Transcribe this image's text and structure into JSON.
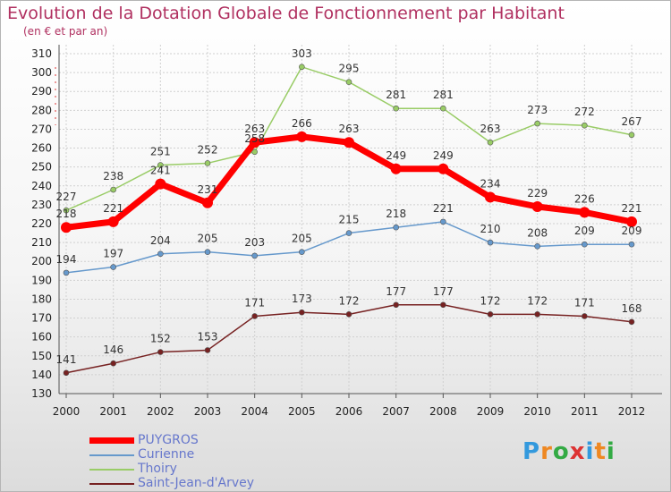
{
  "title": "Evolution de la Dotation Globale de Fonctionnement par Habitant",
  "subtitle": "(en € et par an)",
  "logo_text": "Proxiti",
  "chart_data": {
    "type": "line",
    "title": "Evolution de la Dotation Globale de Fonctionnement par Habitant",
    "subtitle": "(en € et par an)",
    "x": [
      "2000",
      "2001",
      "2002",
      "2003",
      "2004",
      "2005",
      "2006",
      "2007",
      "2008",
      "2009",
      "2010",
      "2011",
      "2012"
    ],
    "ylim": [
      130,
      310
    ],
    "yticks": [
      130,
      140,
      150,
      160,
      170,
      180,
      190,
      200,
      210,
      220,
      230,
      240,
      250,
      260,
      270,
      280,
      290,
      300,
      310
    ],
    "grid": true,
    "legend_position": "bottom-left",
    "series": [
      {
        "name": "PUYGROS",
        "color": "#ff0000",
        "width": 7,
        "values": [
          218,
          221,
          241,
          231,
          263,
          266,
          263,
          249,
          249,
          234,
          229,
          226,
          221
        ]
      },
      {
        "name": "Curienne",
        "color": "#6699cc",
        "width": 1.5,
        "values": [
          194,
          197,
          204,
          205,
          203,
          205,
          215,
          218,
          221,
          210,
          208,
          209,
          209
        ]
      },
      {
        "name": "Thoiry",
        "color": "#99cc66",
        "width": 1.5,
        "values": [
          227,
          238,
          251,
          252,
          258,
          303,
          295,
          281,
          281,
          263,
          273,
          272,
          267
        ]
      },
      {
        "name": "Saint-Jean-d'Arvey",
        "color": "#772222",
        "width": 1.5,
        "values": [
          141,
          146,
          152,
          153,
          171,
          173,
          172,
          177,
          177,
          172,
          172,
          171,
          168
        ]
      }
    ],
    "point_labels": {
      "PUYGROS": [
        "218",
        "221",
        "241",
        "231",
        "263",
        "266",
        "263",
        "249",
        "249",
        "234",
        "229",
        "226",
        "221"
      ],
      "Curienne": [
        "194",
        "197",
        "204",
        "205",
        "203",
        "205",
        "215",
        "218",
        "221",
        "210",
        "208",
        "209",
        "209"
      ],
      "Thoiry": [
        "227",
        "238",
        "251",
        "252",
        "258",
        "303",
        "295",
        "281",
        "281",
        "263",
        "273",
        "272",
        "267"
      ],
      "Saint-Jean-d'Arvey": [
        "141",
        "146",
        "152",
        "153",
        "171",
        "173",
        "172",
        "177",
        "177",
        "172",
        "172",
        "171",
        "168"
      ]
    }
  }
}
